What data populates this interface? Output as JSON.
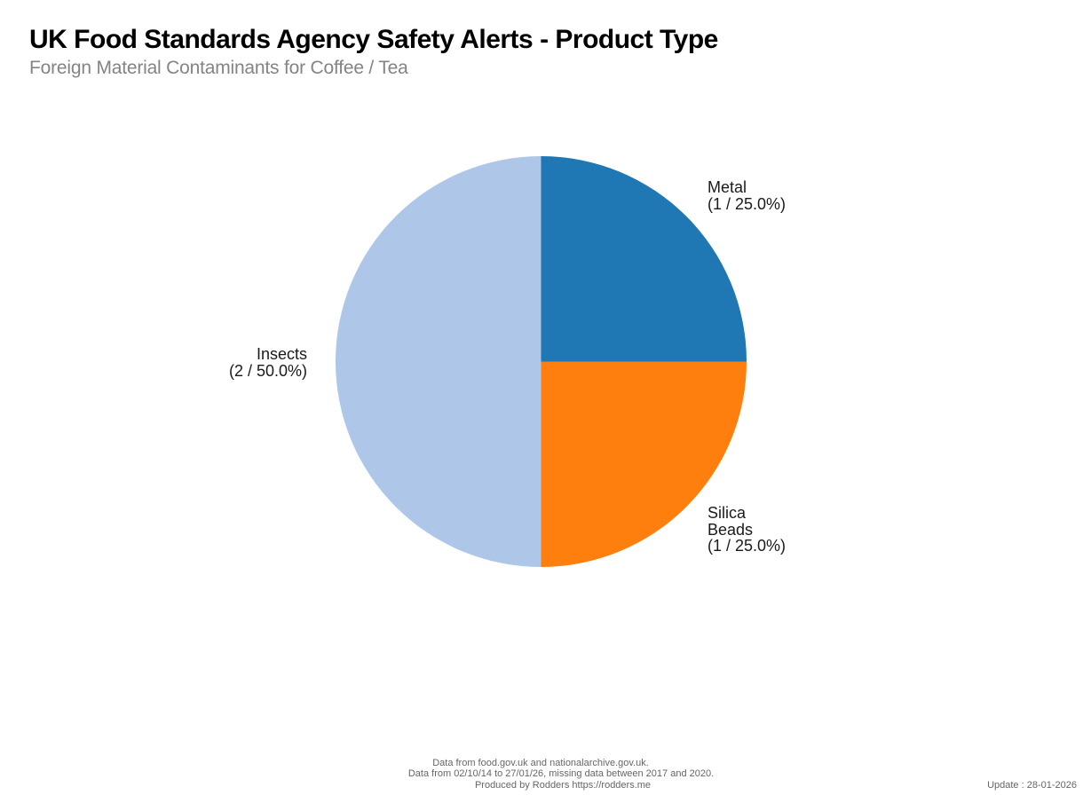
{
  "header": {
    "title": "UK Food Standards Agency Safety Alerts - Product Type",
    "subtitle": "Foreign Material Contaminants for Coffee / Tea"
  },
  "chart_data": {
    "type": "pie",
    "title": "UK Food Standards Agency Safety Alerts - Product Type",
    "subtitle": "Foreign Material Contaminants for Coffee / Tea",
    "slices": [
      {
        "label": "Metal",
        "value": 1,
        "percent": 25.0,
        "color": "#1f77b4"
      },
      {
        "label": "Silica Beads",
        "value": 1,
        "percent": 25.0,
        "color": "#ff7f0e"
      },
      {
        "label": "Insects",
        "value": 2,
        "percent": 50.0,
        "color": "#aec7e8"
      }
    ],
    "total": 4,
    "start_angle_deg": 0,
    "direction": "clockwise",
    "legend": "none",
    "label_format": "Label (count / percent%)"
  },
  "slice_labels": {
    "metal": {
      "line1": "Metal",
      "line2": "(1 / 25.0%)"
    },
    "silica": {
      "line1": "Silica",
      "line2": "Beads",
      "line3": "(1 / 25.0%)"
    },
    "insects": {
      "line1": "Insects",
      "line2": "(2 / 50.0%)"
    }
  },
  "footer": {
    "source_line": "Data from food.gov.uk and nationalarchive.gov.uk.",
    "range_line": "Data from 02/10/14 to 27/01/26, missing data between 2017 and 2020.",
    "produced_line": "Produced by Rodders https://rodders.me",
    "update_label": "Update : 28-01-2026"
  }
}
